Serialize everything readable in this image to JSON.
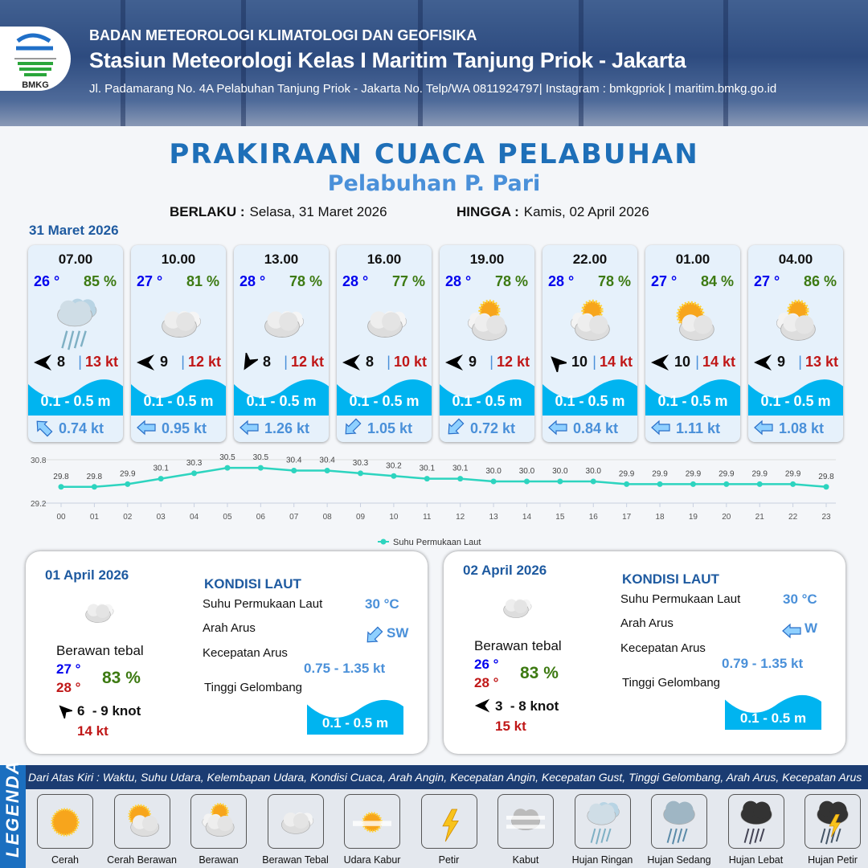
{
  "header": {
    "org": "BADAN METEOROLOGI KLIMATOLOGI DAN GEOFISIKA",
    "station": "Stasiun Meteorologi Kelas I Maritim Tanjung Priok - Jakarta",
    "address": "Jl. Padamarang No. 4A Pelabuhan Tanjung Priok - Jakarta No. Telp/WA 0811924797| Instagram : bmkgpriok | maritim.bmkg.go.id",
    "logo_text": "BMKG"
  },
  "title": "PRAKIRAAN CUACA PELABUHAN",
  "subtitle": "Pelabuhan P. Pari",
  "validity": {
    "from_label": "BERLAKU :",
    "from": "Selasa, 31 Maret 2026",
    "to_label": "HINGGA :",
    "to": "Kamis, 02 April 2026"
  },
  "forecast_date": "31 Maret 2026",
  "colors": {
    "title": "#1e6fb8",
    "temp": "#0000ee",
    "humidity": "#3d7a12",
    "gust": "#c01818",
    "wave": "#00b4f0",
    "current": "#4a90d9",
    "series": "#2dd4bf"
  },
  "hourly": [
    {
      "time": "07.00",
      "temp": "26 °",
      "rh": "85 %",
      "icon": "hujan-ringan",
      "wind_rot": 0,
      "wind": "8",
      "gust": "13 kt",
      "wave": "0.1 - 0.5 m",
      "cur_rot": 45,
      "cur": "0.74 kt"
    },
    {
      "time": "10.00",
      "temp": "27 °",
      "rh": "81 %",
      "icon": "berawan-tebal",
      "wind_rot": 0,
      "wind": "9",
      "gust": "12 kt",
      "wave": "0.1 - 0.5 m",
      "cur_rot": 0,
      "cur": "0.95 kt"
    },
    {
      "time": "13.00",
      "temp": "28 °",
      "rh": "78 %",
      "icon": "berawan-tebal",
      "wind_rot": -60,
      "wind": "8",
      "gust": "12 kt",
      "wave": "0.1 - 0.5 m",
      "cur_rot": 0,
      "cur": "1.26 kt"
    },
    {
      "time": "16.00",
      "temp": "28 °",
      "rh": "77 %",
      "icon": "berawan-tebal",
      "wind_rot": 0,
      "wind": "8",
      "gust": "10 kt",
      "wave": "0.1 - 0.5 m",
      "cur_rot": -45,
      "cur": "1.05 kt"
    },
    {
      "time": "19.00",
      "temp": "28 °",
      "rh": "78 %",
      "icon": "berawan",
      "wind_rot": 0,
      "wind": "9",
      "gust": "12 kt",
      "wave": "0.1 - 0.5 m",
      "cur_rot": -45,
      "cur": "0.72 kt"
    },
    {
      "time": "22.00",
      "temp": "28 °",
      "rh": "78 %",
      "icon": "berawan",
      "wind_rot": 45,
      "wind": "10",
      "gust": "14 kt",
      "wave": "0.1 - 0.5 m",
      "cur_rot": 0,
      "cur": "0.84 kt"
    },
    {
      "time": "01.00",
      "temp": "27 °",
      "rh": "84 %",
      "icon": "cerah-berawan",
      "wind_rot": 0,
      "wind": "10",
      "gust": "14 kt",
      "wave": "0.1 - 0.5 m",
      "cur_rot": 0,
      "cur": "1.11 kt"
    },
    {
      "time": "04.00",
      "temp": "27 °",
      "rh": "86 %",
      "icon": "berawan",
      "wind_rot": 0,
      "wind": "9",
      "gust": "13 kt",
      "wave": "0.1 - 0.5 m",
      "cur_rot": 0,
      "cur": "1.08 kt"
    }
  ],
  "chart_data": {
    "type": "line",
    "categories": [
      "00",
      "01",
      "02",
      "03",
      "04",
      "05",
      "06",
      "07",
      "08",
      "09",
      "10",
      "11",
      "12",
      "13",
      "14",
      "15",
      "16",
      "17",
      "18",
      "19",
      "20",
      "21",
      "22",
      "23"
    ],
    "series": [
      {
        "name": "Suhu Permukaan Laut",
        "values": [
          29.8,
          29.8,
          29.9,
          30.1,
          30.3,
          30.5,
          30.5,
          30.4,
          30.4,
          30.3,
          30.2,
          30.1,
          30.1,
          30.0,
          30.0,
          30.0,
          30.0,
          29.9,
          29.9,
          29.9,
          29.9,
          29.9,
          29.9,
          29.8
        ]
      }
    ],
    "ylim": [
      29.2,
      30.8
    ],
    "yticks": [
      "29.2",
      "30.8"
    ],
    "grid": true,
    "legend": "bottom",
    "data_labels": true
  },
  "daily": [
    {
      "date": "01 April 2026",
      "icon": "berawan-tebal",
      "cond": "Berawan tebal",
      "tmin": "27 °",
      "tmax": "28 °",
      "rh": "83 %",
      "wind_rot": 45,
      "wind": "6  - 9 knot",
      "gust": "14 kt",
      "sea_title": "KONDISI LAUT",
      "sst_label": "Suhu Permukaan Laut",
      "sst": "30 °C",
      "dir_label": "Arah Arus",
      "dir": "SW",
      "dir_rot": -45,
      "speed_label": "Kecepatan Arus",
      "speed": "0.75 - 1.35 kt",
      "wave_label": "Tinggi Gelombang",
      "wave": "0.1 - 0.5 m"
    },
    {
      "date": "02 April 2026",
      "icon": "berawan-tebal",
      "cond": "Berawan tebal",
      "tmin": "26 °",
      "tmax": "28 °",
      "rh": "83 %",
      "wind_rot": 0,
      "wind": "3  - 8 knot",
      "gust": "15 kt",
      "sea_title": "KONDISI LAUT",
      "sst_label": "Suhu Permukaan Laut",
      "sst": "30 °C",
      "dir_label": "Arah Arus",
      "dir": "W",
      "dir_rot": 0,
      "speed_label": "Kecepatan Arus",
      "speed": "0.79 - 1.35 kt",
      "wave_label": "Tinggi Gelombang",
      "wave": "0.1 - 0.5 m"
    }
  ],
  "legend": {
    "title": "LEGENDA",
    "description": "Dari Atas Kiri : Waktu, Suhu Udara, Kelembapan Udara, Kondisi Cuaca, Arah Angin, Kecepatan Angin, Kecepatan Gust, Tinggi Gelombang, Arah Arus, Kecepatan Arus",
    "items": [
      {
        "label": "Cerah",
        "icon": "cerah"
      },
      {
        "label": "Cerah Berawan",
        "icon": "cerah-berawan"
      },
      {
        "label": "Berawan",
        "icon": "berawan"
      },
      {
        "label": "Berawan Tebal",
        "icon": "berawan-tebal"
      },
      {
        "label": "Udara Kabur",
        "icon": "udara-kabur"
      },
      {
        "label": "Petir",
        "icon": "petir"
      },
      {
        "label": "Kabut",
        "icon": "kabut"
      },
      {
        "label": "Hujan Ringan",
        "icon": "hujan-ringan"
      },
      {
        "label": "Hujan Sedang",
        "icon": "hujan-sedang"
      },
      {
        "label": "Hujan Lebat",
        "icon": "hujan-lebat"
      },
      {
        "label": "Hujan Petir",
        "icon": "hujan-petir"
      }
    ]
  }
}
